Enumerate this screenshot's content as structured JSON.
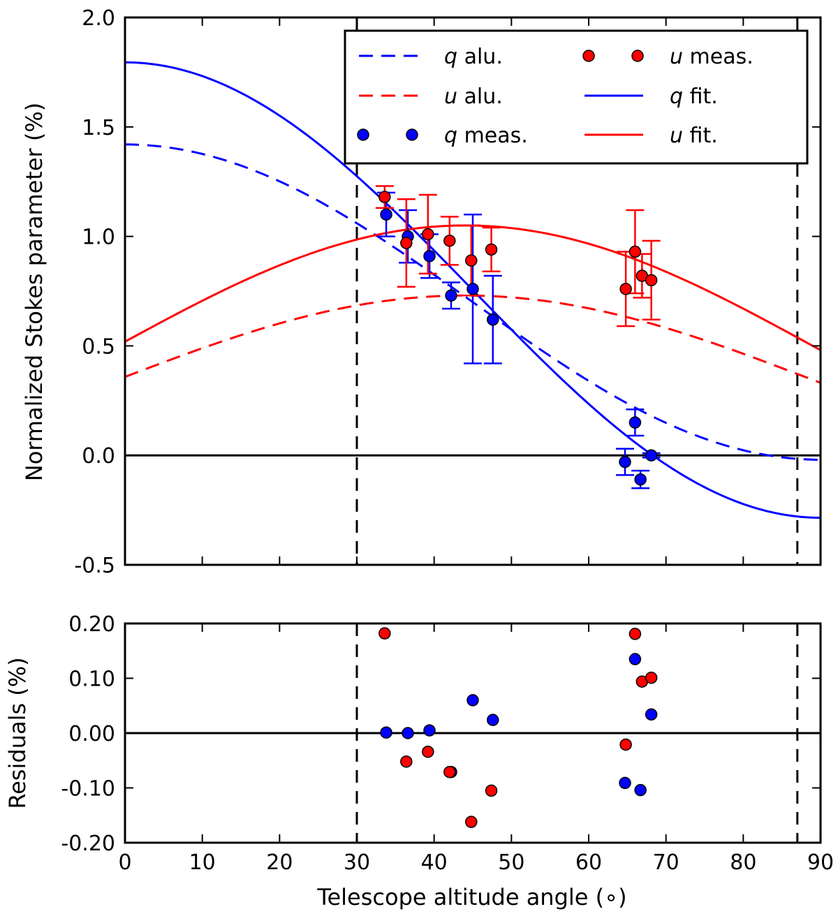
{
  "chart_data": [
    {
      "type": "scatter",
      "panel": "top",
      "ylabel": "Normalized Stokes parameter (%)",
      "xlim": [
        0,
        90
      ],
      "ylim": [
        -0.5,
        2.0
      ],
      "yticks": [
        "2.0",
        "1.5",
        "1.0",
        "0.5",
        "0.0",
        "-0.5"
      ],
      "ytick_values": [
        2.0,
        1.5,
        1.0,
        0.5,
        0.0,
        -0.5
      ],
      "xticks": [
        0,
        10,
        20,
        30,
        40,
        50,
        60,
        70,
        80,
        90
      ],
      "reference_lines": {
        "horizontal_y": 0.0,
        "vertical_dashed_x": [
          30,
          87
        ]
      },
      "legend": {
        "position": "top-right",
        "entries": [
          {
            "var": "q",
            "label": " alu.",
            "style": "dashed-line",
            "color": "#0000ff"
          },
          {
            "var": "u",
            "label": " alu.",
            "style": "dashed-line",
            "color": "#ff0000"
          },
          {
            "var": "q",
            "label": " meas.",
            "style": "markers",
            "color": "#0000ff"
          },
          {
            "var": "u",
            "label": " meas.",
            "style": "markers",
            "color": "#ff0000"
          },
          {
            "var": "q",
            "label": " fit.",
            "style": "solid-line",
            "color": "#0000ff"
          },
          {
            "var": "u",
            "label": " fit.",
            "style": "solid-line",
            "color": "#ff0000"
          }
        ]
      },
      "curves": {
        "q_alu": {
          "color": "#0000ff",
          "style": "dashed",
          "model": "cosine",
          "offset": 0.7,
          "amplitude": 0.72,
          "period_deg": 180,
          "phase_deg": 0
        },
        "u_alu": {
          "color": "#ff0000",
          "style": "dashed",
          "model": "cosine",
          "offset": 0.345,
          "amplitude": 0.385,
          "period_deg": 180,
          "phase_deg": 44
        },
        "q_fit": {
          "color": "#0000ff",
          "style": "solid",
          "model": "cosine",
          "offset": 0.755,
          "amplitude": 1.04,
          "period_deg": 180,
          "phase_deg": 0
        },
        "u_fit": {
          "color": "#ff0000",
          "style": "solid",
          "model": "cosine",
          "offset": 0.5,
          "amplitude": 0.55,
          "period_deg": 180,
          "phase_deg": 44
        }
      },
      "series": [
        {
          "name": "q meas.",
          "color": "#0000ff",
          "x": [
            33.8,
            36.6,
            39.4,
            42.2,
            45.0,
            47.6,
            64.7,
            66.0,
            66.7,
            68.1
          ],
          "y": [
            1.1,
            1.0,
            0.91,
            0.73,
            0.76,
            0.62,
            -0.03,
            0.15,
            -0.11,
            0.0
          ],
          "err": [
            0.1,
            0.12,
            0.1,
            0.06,
            0.34,
            0.2,
            0.06,
            0.06,
            0.04,
            0.01
          ]
        },
        {
          "name": "u meas.",
          "color": "#ff0000",
          "x": [
            33.6,
            36.4,
            39.2,
            42.0,
            44.8,
            47.4,
            64.8,
            66.0,
            66.9,
            68.1
          ],
          "y": [
            1.18,
            0.97,
            1.01,
            0.98,
            0.89,
            0.94,
            0.76,
            0.93,
            0.82,
            0.8
          ],
          "err": [
            0.05,
            0.2,
            0.18,
            0.11,
            0.16,
            0.1,
            0.17,
            0.19,
            0.1,
            0.18
          ]
        }
      ]
    },
    {
      "type": "scatter",
      "panel": "bottom",
      "ylabel": "Residuals (%)",
      "xlabel": "Telescope altitude angle (∘)",
      "xlim": [
        0,
        90
      ],
      "ylim": [
        -0.2,
        0.2
      ],
      "yticks": [
        "0.20",
        "0.10",
        "0.00",
        "-0.10",
        "-0.20"
      ],
      "ytick_values": [
        0.2,
        0.1,
        0.0,
        -0.1,
        -0.2
      ],
      "xticks": [
        0,
        10,
        20,
        30,
        40,
        50,
        60,
        70,
        80,
        90
      ],
      "reference_lines": {
        "horizontal_y": 0.0,
        "vertical_dashed_x": [
          30,
          87
        ]
      },
      "series": [
        {
          "name": "q residuals",
          "color": "#0000ff",
          "x": [
            33.8,
            36.6,
            39.4,
            42.2,
            45.0,
            47.6,
            64.7,
            66.0,
            66.7,
            68.1
          ],
          "y": [
            0.001,
            0.0,
            0.005,
            -0.071,
            0.06,
            0.024,
            -0.091,
            0.135,
            -0.104,
            0.034
          ]
        },
        {
          "name": "u residuals",
          "color": "#ff0000",
          "x": [
            33.6,
            36.4,
            39.2,
            42.0,
            44.8,
            47.4,
            64.8,
            66.0,
            66.9,
            68.1
          ],
          "y": [
            0.182,
            -0.052,
            -0.034,
            -0.071,
            -0.162,
            -0.105,
            -0.021,
            0.181,
            0.094,
            0.101
          ]
        }
      ]
    }
  ]
}
